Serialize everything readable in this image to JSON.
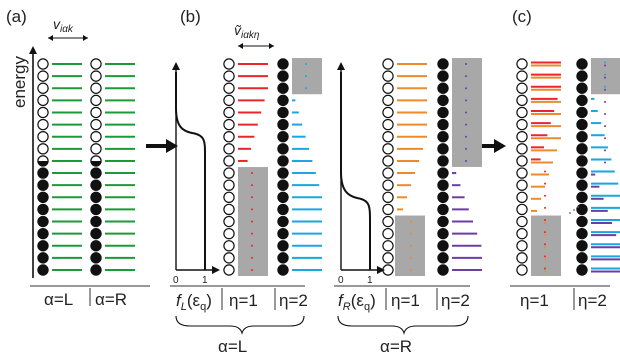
{
  "panels": [
    {
      "key": "a",
      "label": "(a)"
    },
    {
      "key": "b",
      "label": "(b)"
    },
    {
      "key": "c",
      "label": "(c)"
    }
  ],
  "axis": {
    "energy_label": "energy"
  },
  "widths": {
    "v_a": {
      "base": "v",
      "sub": "iαk"
    },
    "v_b": {
      "base": "ṽ",
      "sub": "iαkη"
    }
  },
  "column_labels": {
    "alpha_L": "α=L",
    "alpha_R": "α=R",
    "eta1": "η=1",
    "eta2": "η=2",
    "f_base": "f",
    "f_L_sub": "L",
    "f_R_sub": "R",
    "f_arg": "(ε",
    "f_arg_sub": "q",
    "f_close": ")"
  },
  "brackets": {
    "b_left": "α=L",
    "b_right": "α=R"
  },
  "occupation_plot": {
    "tick_0": "0",
    "tick_1": "1"
  },
  "levels": {
    "count": 18,
    "colors": {
      "green": "#1a9a3a",
      "red": "#e8262b",
      "blue": "#1aa6e0",
      "orange": "#ef8a2a",
      "purple": "#6a3ea3",
      "shade": "#a8a8a8"
    },
    "L_fermi_level_index": 9,
    "R_fermi_level_index": 13
  }
}
